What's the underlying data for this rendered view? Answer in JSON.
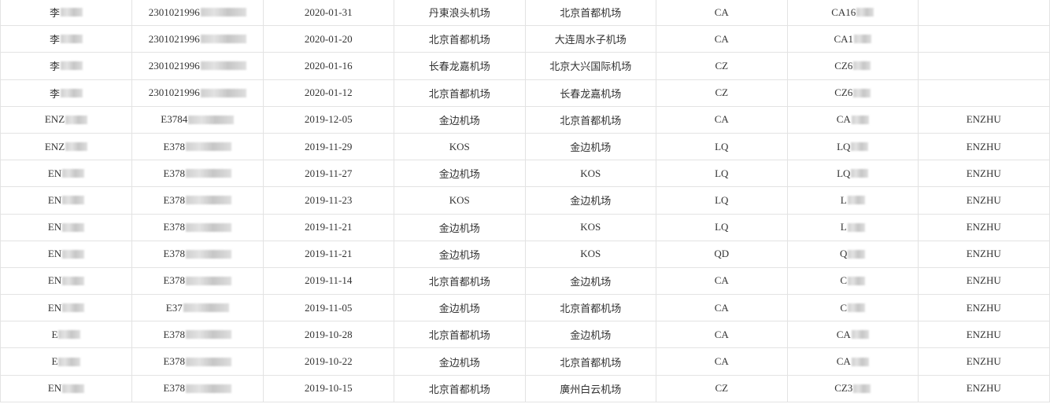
{
  "rows": [
    {
      "name": "李",
      "id": "2301021996",
      "date": "2020-01-31",
      "from": "丹東浪头机场",
      "to": "北京首都机场",
      "airline": "CA",
      "flight": "CA16",
      "pax": ""
    },
    {
      "name": "李",
      "id": "2301021996",
      "date": "2020-01-20",
      "from": "北京首都机场",
      "to": "大连周水子机场",
      "airline": "CA",
      "flight": "CA1",
      "pax": ""
    },
    {
      "name": "李",
      "id": "2301021996",
      "date": "2020-01-16",
      "from": "长春龙嘉机场",
      "to": "北京大兴国际机场",
      "airline": "CZ",
      "flight": "CZ6",
      "pax": ""
    },
    {
      "name": "李",
      "id": "2301021996",
      "date": "2020-01-12",
      "from": "北京首都机场",
      "to": "长春龙嘉机场",
      "airline": "CZ",
      "flight": "CZ6",
      "pax": ""
    },
    {
      "name": "ENZ",
      "id": "E3784",
      "date": "2019-12-05",
      "from": "金边机场",
      "to": "北京首都机场",
      "airline": "CA",
      "flight": "CA",
      "pax": "ENZHU"
    },
    {
      "name": "ENZ",
      "id": "E378",
      "date": "2019-11-29",
      "from": "KOS",
      "to": "金边机场",
      "airline": "LQ",
      "flight": "LQ",
      "pax": "ENZHU"
    },
    {
      "name": "EN",
      "id": "E378",
      "date": "2019-11-27",
      "from": "金边机场",
      "to": "KOS",
      "airline": "LQ",
      "flight": "LQ",
      "pax": "ENZHU"
    },
    {
      "name": "EN",
      "id": "E378",
      "date": "2019-11-23",
      "from": "KOS",
      "to": "金边机场",
      "airline": "LQ",
      "flight": "L",
      "pax": "ENZHU"
    },
    {
      "name": "EN",
      "id": "E378",
      "date": "2019-11-21",
      "from": "金边机场",
      "to": "KOS",
      "airline": "LQ",
      "flight": "L",
      "pax": "ENZHU"
    },
    {
      "name": "EN",
      "id": "E378",
      "date": "2019-11-21",
      "from": "金边机场",
      "to": "KOS",
      "airline": "QD",
      "flight": "Q",
      "pax": "ENZHU"
    },
    {
      "name": "EN",
      "id": "E378",
      "date": "2019-11-14",
      "from": "北京首都机场",
      "to": "金边机场",
      "airline": "CA",
      "flight": "C",
      "pax": "ENZHU"
    },
    {
      "name": "EN",
      "id": "E37",
      "date": "2019-11-05",
      "from": "金边机场",
      "to": "北京首都机场",
      "airline": "CA",
      "flight": "C",
      "pax": "ENZHU"
    },
    {
      "name": "E",
      "id": "E378",
      "date": "2019-10-28",
      "from": "北京首都机场",
      "to": "金边机场",
      "airline": "CA",
      "flight": "CA",
      "pax": "ENZHU"
    },
    {
      "name": "E",
      "id": "E378",
      "date": "2019-10-22",
      "from": "金边机场",
      "to": "北京首都机场",
      "airline": "CA",
      "flight": "CA",
      "pax": "ENZHU"
    },
    {
      "name": "EN",
      "id": "E378",
      "date": "2019-10-15",
      "from": "北京首都机场",
      "to": "廣州白云机场",
      "airline": "CZ",
      "flight": "CZ3",
      "pax": "ENZHU"
    }
  ]
}
